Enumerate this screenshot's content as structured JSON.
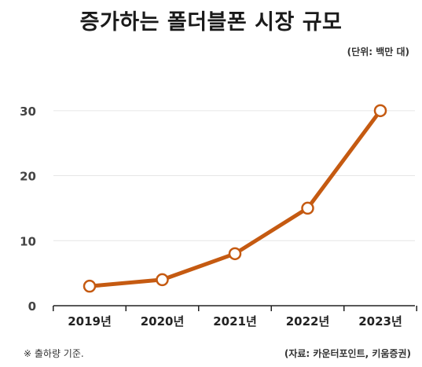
{
  "chart_data": {
    "type": "line",
    "title": "증가하는 폴더블폰 시장 규모",
    "unit": "(단위: 백만 대)",
    "categories": [
      "2019년",
      "2020년",
      "2021년",
      "2022년",
      "2023년"
    ],
    "series": [
      {
        "values": [
          3,
          4,
          8,
          15,
          30
        ]
      }
    ],
    "y_ticks": [
      "0",
      "10",
      "20",
      "30"
    ],
    "ylim": [
      0,
      33
    ],
    "grid": true,
    "footnote": "※ 출하량 기준.",
    "source": "(자료: 카운터포인트, 키움증권)",
    "colors": {
      "line": "#c55a11",
      "marker_fill": "#ffffff",
      "grid": "#e6e6e6",
      "axis": "#222222"
    }
  }
}
